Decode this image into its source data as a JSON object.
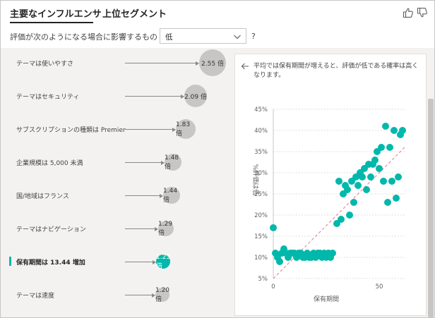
{
  "header": {
    "tab_key_influencers": "主要なインフルエンサ",
    "tab_top_segments": "上位セグメント"
  },
  "filter": {
    "label": "評価が次のようになる場合に影響するもの",
    "selected": "低",
    "help": "?"
  },
  "influencers": [
    {
      "label": "テーマは使いやすさ",
      "value": "2.55 倍",
      "factor": 2.55,
      "selected": false
    },
    {
      "label": "テーマはセキュリティ",
      "value": "2.09 倍",
      "factor": 2.09,
      "selected": false
    },
    {
      "label": "サブスクリプションの種類は Premier",
      "value": "1.83 倍",
      "factor": 1.83,
      "selected": false
    },
    {
      "label": "企業規模は 5,000 未満",
      "value": "1.48 倍",
      "factor": 1.48,
      "selected": false
    },
    {
      "label": "国/地域はフランス",
      "value": "1.44 倍",
      "factor": 1.44,
      "selected": false
    },
    {
      "label": "テーマはナビゲーション",
      "value": "1.29 倍",
      "factor": 1.29,
      "selected": false
    },
    {
      "label": "保有期間は 13.44 増加",
      "value": "1.23 倍",
      "factor": 1.23,
      "selected": true
    },
    {
      "label": "テーマは速度",
      "value": "1.20 倍",
      "factor": 1.2,
      "selected": false
    }
  ],
  "detail": {
    "description": "平均では保有期間が増えると、評価が低である確率は高くなります。"
  },
  "chart_data": {
    "type": "scatter",
    "title": "",
    "xlabel": "保有期間",
    "ylabel": "%評価は低",
    "xlim": [
      0,
      62
    ],
    "ylim": [
      5,
      45
    ],
    "x_ticks": [
      0,
      50
    ],
    "y_ticks": [
      "5%",
      "10%",
      "15%",
      "20%",
      "25%",
      "30%",
      "35%",
      "40%",
      "45%"
    ],
    "y_tick_values": [
      5,
      10,
      15,
      20,
      25,
      30,
      35,
      40,
      45
    ],
    "grid": true,
    "trendline": {
      "x": [
        0,
        62
      ],
      "y": [
        5,
        36
      ]
    },
    "points_x": [
      0,
      1,
      2,
      3,
      4,
      5,
      6,
      7,
      8,
      9,
      10,
      11,
      12,
      13,
      14,
      15,
      16,
      17,
      18,
      19,
      20,
      21,
      22,
      23,
      24,
      25,
      26,
      27,
      28,
      30,
      31,
      32,
      33,
      34,
      35,
      36,
      37,
      38,
      39,
      40,
      41,
      42,
      43,
      44,
      45,
      46,
      47,
      48,
      49,
      50,
      51,
      52,
      53,
      54,
      55,
      56,
      57,
      58,
      59,
      60,
      61
    ],
    "points_y": [
      17,
      11,
      10,
      9,
      11,
      12,
      11,
      10,
      11,
      11,
      11,
      10,
      11,
      11,
      10,
      10,
      11,
      10,
      10,
      11,
      10,
      11,
      11,
      10,
      11,
      10,
      11,
      10,
      11,
      18,
      28,
      19,
      25,
      27,
      26,
      20,
      28,
      23,
      29,
      27,
      30,
      29,
      31,
      26,
      32,
      29,
      32,
      33,
      35,
      31,
      36,
      28,
      41,
      23,
      36,
      28,
      40,
      24,
      29,
      39,
      40
    ]
  },
  "colors": {
    "accent": "#01b8aa",
    "bubble": "#c8c6c4",
    "trend": "#f28b94"
  }
}
